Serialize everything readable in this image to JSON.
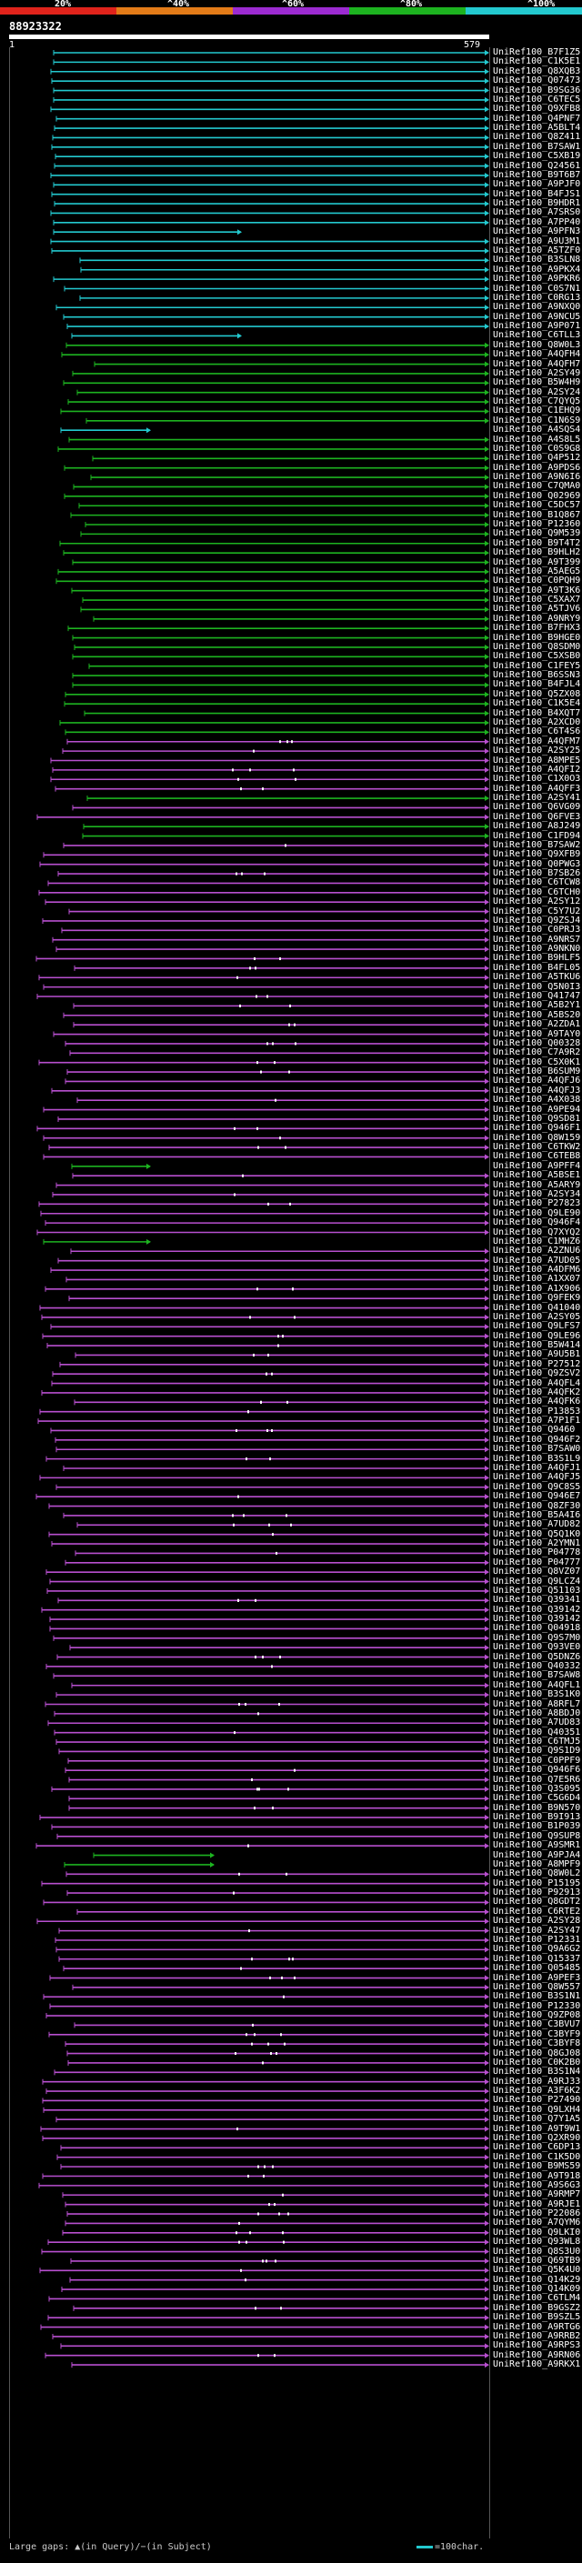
{
  "identity_scale": {
    "labels": [
      "20%",
      "^40%",
      "^60%",
      "^80%",
      "^100%"
    ],
    "colors": [
      "#e0231b",
      "#e37b18",
      "#9c2bd1",
      "#1db320",
      "#23c9cf"
    ]
  },
  "query": {
    "id": "88923322",
    "start": "1",
    "end": "579"
  },
  "colors": {
    "cyan": "#23c9cf",
    "green": "#1db320",
    "magenta": "#b84fcf",
    "orange": "#e37b18",
    "red": "#e0231b",
    "background": "#000000"
  },
  "hits": [
    {
      "id": "UniRef100_B7F1Z5",
      "class": "cyan"
    },
    {
      "id": "UniRef100_C1K5E1",
      "class": "cyan"
    },
    {
      "id": "UniRef100_Q8XQB3",
      "class": "cyan"
    },
    {
      "id": "UniRef100_Q07473",
      "class": "cyan"
    },
    {
      "id": "UniRef100_B9SG36",
      "class": "cyan"
    },
    {
      "id": "UniRef100_C6TEC5",
      "class": "cyan"
    },
    {
      "id": "UniRef100_Q9XFB8",
      "class": "cyan"
    },
    {
      "id": "UniRef100_Q4PNF7",
      "class": "cyan"
    },
    {
      "id": "UniRef100_A5BLT4",
      "class": "cyan"
    },
    {
      "id": "UniRef100_Q8Z411",
      "class": "cyan"
    },
    {
      "id": "UniRef100_B7SAW1",
      "class": "cyan"
    },
    {
      "id": "UniRef100_C5XB19",
      "class": "cyan"
    },
    {
      "id": "UniRef100_Q24561",
      "class": "cyan"
    },
    {
      "id": "UniRef100_B9T6B7",
      "class": "cyan"
    },
    {
      "id": "UniRef100_A9PJF0",
      "class": "cyan"
    },
    {
      "id": "UniRef100_B4FJS1",
      "class": "cyan"
    },
    {
      "id": "UniRef100_B9HDR1",
      "class": "cyan"
    },
    {
      "id": "UniRef100_A7SRS0",
      "class": "cyan"
    },
    {
      "id": "UniRef100_A7PP40",
      "class": "cyan"
    },
    {
      "id": "UniRef100_A9PFN3",
      "class": "cyan"
    },
    {
      "id": "UniRef100_A9U3M1",
      "class": "cyan"
    },
    {
      "id": "UniRef100_A5TZF0",
      "class": "cyan"
    },
    {
      "id": "UniRef100_B3SLN8",
      "class": "cyan"
    },
    {
      "id": "UniRef100_A9PKX4",
      "class": "cyan"
    },
    {
      "id": "UniRef100_A9PKR6",
      "class": "cyan"
    },
    {
      "id": "UniRef100_C0S7N1",
      "class": "cyan"
    },
    {
      "id": "UniRef100_C0RG13",
      "class": "cyan"
    },
    {
      "id": "UniRef100_A9NXQ0",
      "class": "cyan"
    },
    {
      "id": "UniRef100_A9NCU5",
      "class": "cyan"
    },
    {
      "id": "UniRef100_A9P071",
      "class": "cyan"
    },
    {
      "id": "UniRef100_C6TLL3",
      "class": "cyan"
    },
    {
      "id": "UniRef100_Q8W0L3",
      "class": "green"
    },
    {
      "id": "UniRef100_A4QFH4",
      "class": "green"
    },
    {
      "id": "UniRef100_A4QFH7",
      "class": "green"
    },
    {
      "id": "UniRef100_A2SY49",
      "class": "green"
    },
    {
      "id": "UniRef100_B5W4H9",
      "class": "green"
    },
    {
      "id": "UniRef100_A2SY24",
      "class": "green"
    },
    {
      "id": "UniRef100_C7QYQ5",
      "class": "green"
    },
    {
      "id": "UniRef100_C1EHQ9",
      "class": "green"
    },
    {
      "id": "UniRef100_C1N6S9",
      "class": "green"
    },
    {
      "id": "UniRef100_A4SQS4",
      "class": "cyan"
    },
    {
      "id": "UniRef100_A4S8L5",
      "class": "green"
    },
    {
      "id": "UniRef100_C0S9G8",
      "class": "green"
    },
    {
      "id": "UniRef100_Q4P512",
      "class": "green"
    },
    {
      "id": "UniRef100_A9PDS6",
      "class": "green"
    },
    {
      "id": "UniRef100_A9N6I6",
      "class": "green"
    },
    {
      "id": "UniRef100_C7QMA0",
      "class": "green"
    },
    {
      "id": "UniRef100_Q02969",
      "class": "green"
    },
    {
      "id": "UniRef100_C5DC57",
      "class": "green"
    },
    {
      "id": "UniRef100_B1Q867",
      "class": "green"
    },
    {
      "id": "UniRef100_P12360",
      "class": "green"
    },
    {
      "id": "UniRef100_Q9M539",
      "class": "green"
    },
    {
      "id": "UniRef100_B9T4T2",
      "class": "green"
    },
    {
      "id": "UniRef100_B9HLH2",
      "class": "green"
    },
    {
      "id": "UniRef100_A9T399",
      "class": "green"
    },
    {
      "id": "UniRef100_A5AEG5",
      "class": "green"
    },
    {
      "id": "UniRef100_C0PQH9",
      "class": "green"
    },
    {
      "id": "UniRef100_A9T3K6",
      "class": "green"
    },
    {
      "id": "UniRef100_C5XAX7",
      "class": "green"
    },
    {
      "id": "UniRef100_A5TJV6",
      "class": "green"
    },
    {
      "id": "UniRef100_A9NRY9",
      "class": "green"
    },
    {
      "id": "UniRef100_B7FHX3",
      "class": "green"
    },
    {
      "id": "UniRef100_B9HGE0",
      "class": "green"
    },
    {
      "id": "UniRef100_Q8SDM0",
      "class": "green"
    },
    {
      "id": "UniRef100_C5XSB0",
      "class": "green"
    },
    {
      "id": "UniRef100_C1FEY5",
      "class": "green"
    },
    {
      "id": "UniRef100_B6SSN3",
      "class": "green"
    },
    {
      "id": "UniRef100_B4FJL4",
      "class": "green"
    },
    {
      "id": "UniRef100_Q5ZX08",
      "class": "green"
    },
    {
      "id": "UniRef100_C1K5E4",
      "class": "green"
    },
    {
      "id": "UniRef100_B4XQT7",
      "class": "green"
    },
    {
      "id": "UniRef100_A2XCD0",
      "class": "green"
    },
    {
      "id": "UniRef100_C6T4S6",
      "class": "green"
    },
    {
      "id": "UniRef100_A4QFM7",
      "class": "magenta"
    },
    {
      "id": "UniRef100_A2SY25",
      "class": "magenta"
    },
    {
      "id": "UniRef100_A8MPE5",
      "class": "magenta"
    },
    {
      "id": "UniRef100_A4QFI2",
      "class": "magenta"
    },
    {
      "id": "UniRef100_C1X0O3",
      "class": "magenta"
    },
    {
      "id": "UniRef100_A4QFF3",
      "class": "magenta"
    },
    {
      "id": "UniRef100_A2SY41",
      "class": "green"
    },
    {
      "id": "UniRef100_Q6VG09",
      "class": "magenta"
    },
    {
      "id": "UniRef100_Q6FVE3",
      "class": "magenta"
    },
    {
      "id": "UniRef100_A8J249",
      "class": "green"
    },
    {
      "id": "UniRef100_C1FD94",
      "class": "green"
    },
    {
      "id": "UniRef100_B7SAW2",
      "class": "magenta"
    },
    {
      "id": "UniRef100_Q9XFB9",
      "class": "magenta"
    },
    {
      "id": "UniRef100_Q0PWG3",
      "class": "magenta"
    },
    {
      "id": "UniRef100_B7SB26",
      "class": "magenta"
    },
    {
      "id": "UniRef100_C6TCW8",
      "class": "magenta"
    },
    {
      "id": "UniRef100_C6TCH0",
      "class": "magenta"
    },
    {
      "id": "UniRef100_A2SY12",
      "class": "magenta"
    },
    {
      "id": "UniRef100_C5Y7U2",
      "class": "magenta"
    },
    {
      "id": "UniRef100_Q9ZSJ4",
      "class": "magenta"
    },
    {
      "id": "UniRef100_C0PRJ3",
      "class": "magenta"
    },
    {
      "id": "UniRef100_A9NRS7",
      "class": "magenta"
    },
    {
      "id": "UniRef100_A9NKN0",
      "class": "magenta"
    },
    {
      "id": "UniRef100_B9HLF5",
      "class": "magenta"
    },
    {
      "id": "UniRef100_B4FL05",
      "class": "magenta"
    },
    {
      "id": "UniRef100_A5TKU6",
      "class": "magenta"
    },
    {
      "id": "UniRef100_Q5N0I3",
      "class": "magenta"
    },
    {
      "id": "UniRef100_Q41747",
      "class": "magenta"
    },
    {
      "id": "UniRef100_A5B2Y1",
      "class": "magenta"
    },
    {
      "id": "UniRef100_A5BS20",
      "class": "magenta"
    },
    {
      "id": "UniRef100_A2ZDA1",
      "class": "magenta"
    },
    {
      "id": "UniRef100_A9TAY0",
      "class": "magenta"
    },
    {
      "id": "UniRef100_Q00328",
      "class": "magenta"
    },
    {
      "id": "UniRef100_C7A9R2",
      "class": "magenta"
    },
    {
      "id": "UniRef100_C5X0K1",
      "class": "magenta"
    },
    {
      "id": "UniRef100_B6SUM9",
      "class": "magenta"
    },
    {
      "id": "UniRef100_A4QFJ6",
      "class": "magenta"
    },
    {
      "id": "UniRef100_A4QFJ3",
      "class": "magenta"
    },
    {
      "id": "UniRef100_A4X038",
      "class": "magenta"
    },
    {
      "id": "UniRef100_A9PE94",
      "class": "magenta"
    },
    {
      "id": "UniRef100_Q9SD81",
      "class": "magenta"
    },
    {
      "id": "UniRef100_Q946F1",
      "class": "magenta"
    },
    {
      "id": "UniRef100_Q8W159",
      "class": "magenta"
    },
    {
      "id": "UniRef100_C6TKW2",
      "class": "magenta"
    },
    {
      "id": "UniRef100_C6TEB8",
      "class": "magenta"
    },
    {
      "id": "UniRef100_A9PFF4",
      "class": "green"
    },
    {
      "id": "UniRef100_A5BSE1",
      "class": "magenta"
    },
    {
      "id": "UniRef100_A5ARY9",
      "class": "magenta"
    },
    {
      "id": "UniRef100_A2SY34",
      "class": "magenta"
    },
    {
      "id": "UniRef100_P27823",
      "class": "magenta"
    },
    {
      "id": "UniRef100_Q9LE90",
      "class": "magenta"
    },
    {
      "id": "UniRef100_Q946F4",
      "class": "magenta"
    },
    {
      "id": "UniRef100_Q7XYQ2",
      "class": "magenta"
    },
    {
      "id": "UniRef100_C1MHZ6",
      "class": "green"
    },
    {
      "id": "UniRef100_A2ZNU6",
      "class": "magenta"
    },
    {
      "id": "UniRef100_A7UD05",
      "class": "magenta"
    },
    {
      "id": "UniRef100_A4DFM6",
      "class": "magenta"
    },
    {
      "id": "UniRef100_A1XX07",
      "class": "magenta"
    },
    {
      "id": "UniRef100_A1X906",
      "class": "magenta"
    },
    {
      "id": "UniRef100_Q9FEK9",
      "class": "magenta"
    },
    {
      "id": "UniRef100_Q41040",
      "class": "magenta"
    },
    {
      "id": "UniRef100_A2SY05",
      "class": "magenta"
    },
    {
      "id": "UniRef100_Q9LFS7",
      "class": "magenta"
    },
    {
      "id": "UniRef100_Q9LE96",
      "class": "magenta"
    },
    {
      "id": "UniRef100_B5W414",
      "class": "magenta"
    },
    {
      "id": "UniRef100_A9U5B1",
      "class": "magenta"
    },
    {
      "id": "UniRef100_P27512",
      "class": "magenta"
    },
    {
      "id": "UniRef100_Q9ZSV2",
      "class": "magenta"
    },
    {
      "id": "UniRef100_A4QFL4",
      "class": "magenta"
    },
    {
      "id": "UniRef100_A4QFK2",
      "class": "magenta"
    },
    {
      "id": "UniRef100_A4QFK6",
      "class": "magenta"
    },
    {
      "id": "UniRef100_P13853",
      "class": "magenta"
    },
    {
      "id": "UniRef100_A7P1F1",
      "class": "magenta"
    },
    {
      "id": "UniRef100_Q9460",
      "class": "magenta"
    },
    {
      "id": "UniRef100_Q946F2",
      "class": "magenta"
    },
    {
      "id": "UniRef100_B7SAW0",
      "class": "magenta"
    },
    {
      "id": "UniRef100_B3S1L9",
      "class": "magenta"
    },
    {
      "id": "UniRef100_A4QFJ1",
      "class": "magenta"
    },
    {
      "id": "UniRef100_A4QFJ5",
      "class": "magenta"
    },
    {
      "id": "UniRef100_Q9C8S5",
      "class": "magenta"
    },
    {
      "id": "UniRef100_Q946E7",
      "class": "magenta"
    },
    {
      "id": "UniRef100_Q8ZF30",
      "class": "magenta"
    },
    {
      "id": "UniRef100_B5A4I6",
      "class": "magenta"
    },
    {
      "id": "UniRef100_A7UD82",
      "class": "magenta"
    },
    {
      "id": "UniRef100_Q5Q1K0",
      "class": "magenta"
    },
    {
      "id": "UniRef100_A2YMN1",
      "class": "magenta"
    },
    {
      "id": "UniRef100_P04778",
      "class": "magenta"
    },
    {
      "id": "UniRef100_P04777",
      "class": "magenta"
    },
    {
      "id": "UniRef100_Q8VZ07",
      "class": "magenta"
    },
    {
      "id": "UniRef100_Q9LCZ4",
      "class": "magenta"
    },
    {
      "id": "UniRef100_Q51103",
      "class": "magenta"
    },
    {
      "id": "UniRef100_Q39341",
      "class": "magenta"
    },
    {
      "id": "UniRef100_Q39142",
      "class": "magenta"
    },
    {
      "id": "UniRef100_Q39142",
      "class": "magenta"
    },
    {
      "id": "UniRef100_Q04918",
      "class": "magenta"
    },
    {
      "id": "UniRef100_Q9S7M0",
      "class": "magenta"
    },
    {
      "id": "UniRef100_Q93VE0",
      "class": "magenta"
    },
    {
      "id": "UniRef100_Q5DNZ6",
      "class": "magenta"
    },
    {
      "id": "UniRef100_Q40332",
      "class": "magenta"
    },
    {
      "id": "UniRef100_B7SAW8",
      "class": "magenta"
    },
    {
      "id": "UniRef100_A4QFL1",
      "class": "magenta"
    },
    {
      "id": "UniRef100_B3S1K0",
      "class": "magenta"
    },
    {
      "id": "UniRef100_A8RFL7",
      "class": "magenta"
    },
    {
      "id": "UniRef100_A8BDJ0",
      "class": "magenta"
    },
    {
      "id": "UniRef100_A7UD83",
      "class": "magenta"
    },
    {
      "id": "UniRef100_Q40351",
      "class": "magenta"
    },
    {
      "id": "UniRef100_C6TMJ5",
      "class": "magenta"
    },
    {
      "id": "UniRef100_Q9S1D9",
      "class": "magenta"
    },
    {
      "id": "UniRef100_C0PPF9",
      "class": "magenta"
    },
    {
      "id": "UniRef100_Q946F6",
      "class": "magenta"
    },
    {
      "id": "UniRef100_Q7E5R6",
      "class": "magenta"
    },
    {
      "id": "UniRef100_Q3S095",
      "class": "magenta"
    },
    {
      "id": "UniRef100_C5G6D4",
      "class": "magenta"
    },
    {
      "id": "UniRef100_B9N570",
      "class": "magenta"
    },
    {
      "id": "UniRef100_B9I913",
      "class": "magenta"
    },
    {
      "id": "UniRef100_B1P039",
      "class": "magenta"
    },
    {
      "id": "UniRef100_Q9SUP8",
      "class": "magenta"
    },
    {
      "id": "UniRef100_A9SMR1",
      "class": "magenta"
    },
    {
      "id": "UniRef100_A9PJA4",
      "class": "green"
    },
    {
      "id": "UniRef100_A8MPF9",
      "class": "green"
    },
    {
      "id": "UniRef100_Q8W0L2",
      "class": "magenta"
    },
    {
      "id": "UniRef100_P15195",
      "class": "magenta"
    },
    {
      "id": "UniRef100_P92913",
      "class": "magenta"
    },
    {
      "id": "UniRef100_Q8GDT2",
      "class": "magenta"
    },
    {
      "id": "UniRef100_C6RTE2",
      "class": "magenta"
    },
    {
      "id": "UniRef100_A2SY28",
      "class": "magenta"
    },
    {
      "id": "UniRef100_A2SY47",
      "class": "magenta"
    },
    {
      "id": "UniRef100_P12331",
      "class": "magenta"
    },
    {
      "id": "UniRef100_Q9A6G2",
      "class": "magenta"
    },
    {
      "id": "UniRef100_Q15337",
      "class": "magenta"
    },
    {
      "id": "UniRef100_Q05485",
      "class": "magenta"
    },
    {
      "id": "UniRef100_A9PEF3",
      "class": "magenta"
    },
    {
      "id": "UniRef100_Q8W557",
      "class": "magenta"
    },
    {
      "id": "UniRef100_B3S1N1",
      "class": "magenta"
    },
    {
      "id": "UniRef100_P12330",
      "class": "magenta"
    },
    {
      "id": "UniRef100_Q9ZP08",
      "class": "magenta"
    },
    {
      "id": "UniRef100_C3BVU7",
      "class": "magenta"
    },
    {
      "id": "UniRef100_C3BYF9",
      "class": "magenta"
    },
    {
      "id": "UniRef100_C3BYF8",
      "class": "magenta"
    },
    {
      "id": "UniRef100_Q8GJ08",
      "class": "magenta"
    },
    {
      "id": "UniRef100_C0K2B0",
      "class": "magenta"
    },
    {
      "id": "UniRef100_B3S1N4",
      "class": "magenta"
    },
    {
      "id": "UniRef100_A9RJ33",
      "class": "magenta"
    },
    {
      "id": "UniRef100_A3F6K2",
      "class": "magenta"
    },
    {
      "id": "UniRef100_P27490",
      "class": "magenta"
    },
    {
      "id": "UniRef100_Q9LXH4",
      "class": "magenta"
    },
    {
      "id": "UniRef100_Q7Y1A5",
      "class": "magenta"
    },
    {
      "id": "UniRef100_A9T9W1",
      "class": "magenta"
    },
    {
      "id": "UniRef100_Q2XR90",
      "class": "magenta"
    },
    {
      "id": "UniRef100_C6DP13",
      "class": "magenta"
    },
    {
      "id": "UniRef100_C1K5D0",
      "class": "magenta"
    },
    {
      "id": "UniRef100_B9MS59",
      "class": "magenta"
    },
    {
      "id": "UniRef100_A9T918",
      "class": "magenta"
    },
    {
      "id": "UniRef100_A9S6G3",
      "class": "magenta"
    },
    {
      "id": "UniRef100_A9RMP7",
      "class": "magenta"
    },
    {
      "id": "UniRef100_A9RJE1",
      "class": "magenta"
    },
    {
      "id": "UniRef100_P22086",
      "class": "magenta"
    },
    {
      "id": "UniRef100_A7QYM6",
      "class": "magenta"
    },
    {
      "id": "UniRef100_Q9LKI0",
      "class": "magenta"
    },
    {
      "id": "UniRef100_Q93WL8",
      "class": "magenta"
    },
    {
      "id": "UniRef100_Q8S3U0",
      "class": "magenta"
    },
    {
      "id": "UniRef100_Q69TB9",
      "class": "magenta"
    },
    {
      "id": "UniRef100_Q5K4U0",
      "class": "magenta"
    },
    {
      "id": "UniRef100_Q14K29",
      "class": "magenta"
    },
    {
      "id": "UniRef100_Q14K09",
      "class": "magenta"
    },
    {
      "id": "UniRef100_C6TLM4",
      "class": "magenta"
    },
    {
      "id": "UniRef100_B9GSZ2",
      "class": "magenta"
    },
    {
      "id": "UniRef100_B9SZL5",
      "class": "magenta"
    },
    {
      "id": "UniRef100_A9RTG6",
      "class": "magenta"
    },
    {
      "id": "UniRef100_A9RRB2",
      "class": "magenta"
    },
    {
      "id": "UniRef100_A9RPS3",
      "class": "magenta"
    },
    {
      "id": "UniRef100_A9RN06",
      "class": "magenta"
    },
    {
      "id": "UniRef100_A9RKX1",
      "class": "magenta"
    }
  ],
  "footer": {
    "legend": "Large gaps: ▲(in Query)/−(in Subject)",
    "scale": "=100char."
  }
}
